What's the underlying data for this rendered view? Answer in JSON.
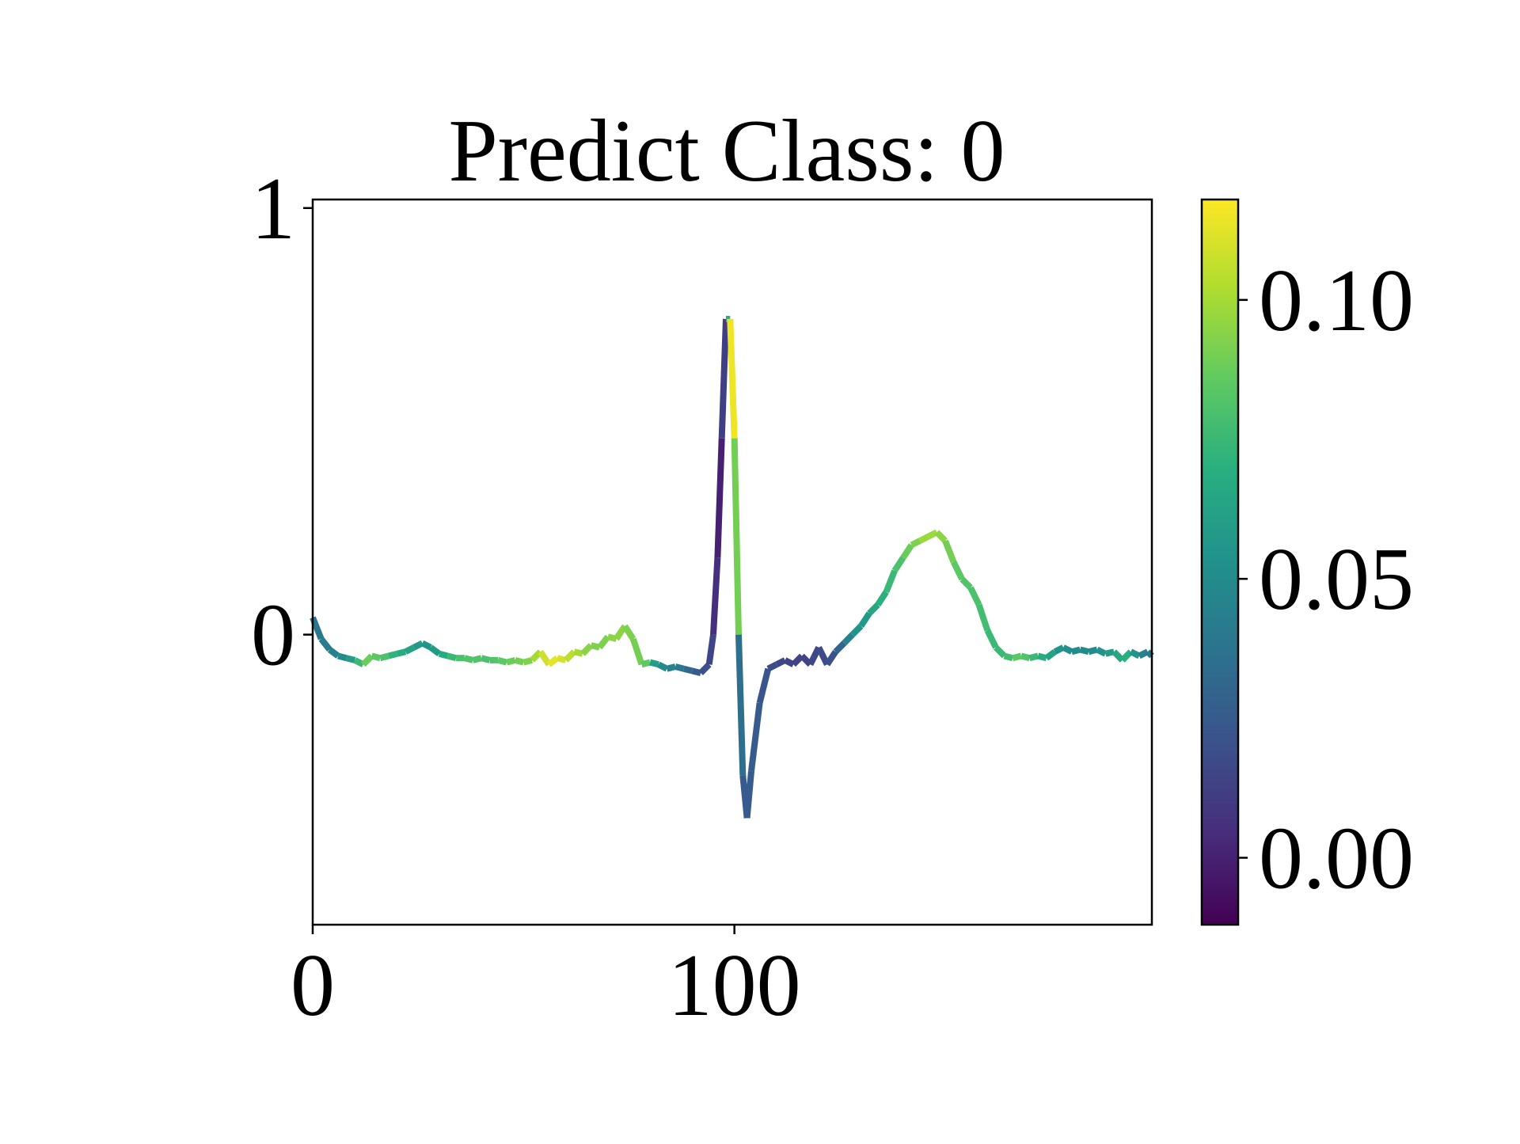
{
  "chart_data": {
    "type": "line",
    "title": "Predict Class: 0",
    "xlabel": "",
    "ylabel": "",
    "xlim": [
      0,
      199
    ],
    "ylim": [
      -0.68,
      1.02
    ],
    "x_ticks": [
      {
        "value": 0,
        "label": "0"
      },
      {
        "value": 100,
        "label": "100"
      }
    ],
    "y_ticks": [
      {
        "value": 0,
        "label": "0"
      },
      {
        "value": 1,
        "label": "1"
      }
    ],
    "grid": false,
    "legend": "none",
    "colormap": "viridis",
    "colorbar": {
      "range": [
        -0.012,
        0.118
      ],
      "ticks": [
        {
          "value": 0.0,
          "label": "0.00"
        },
        {
          "value": 0.05,
          "label": "0.05"
        },
        {
          "value": 0.1,
          "label": "0.10"
        }
      ]
    },
    "series": [
      {
        "points": [
          [
            0,
            0.04,
            0.04
          ],
          [
            2,
            -0.01,
            0.042
          ],
          [
            4,
            -0.035,
            0.045
          ],
          [
            6,
            -0.05,
            0.05
          ],
          [
            8,
            -0.055,
            0.06
          ],
          [
            10,
            -0.06,
            0.075
          ],
          [
            12,
            -0.07,
            0.088
          ],
          [
            14,
            -0.05,
            0.085
          ],
          [
            16,
            -0.055,
            0.08
          ],
          [
            18,
            -0.05,
            0.072
          ],
          [
            20,
            -0.045,
            0.068
          ],
          [
            22,
            -0.04,
            0.063
          ],
          [
            24,
            -0.03,
            0.058
          ],
          [
            26,
            -0.02,
            0.055
          ],
          [
            28,
            -0.03,
            0.058
          ],
          [
            30,
            -0.045,
            0.068
          ],
          [
            32,
            -0.05,
            0.075
          ],
          [
            34,
            -0.055,
            0.08
          ],
          [
            36,
            -0.055,
            0.082
          ],
          [
            38,
            -0.06,
            0.082
          ],
          [
            40,
            -0.055,
            0.08
          ],
          [
            42,
            -0.06,
            0.082
          ],
          [
            44,
            -0.06,
            0.085
          ],
          [
            46,
            -0.065,
            0.088
          ],
          [
            48,
            -0.06,
            0.09
          ],
          [
            50,
            -0.065,
            0.092
          ],
          [
            52,
            -0.06,
            0.1
          ],
          [
            54,
            -0.04,
            0.108
          ],
          [
            56,
            -0.07,
            0.113
          ],
          [
            58,
            -0.055,
            0.11
          ],
          [
            60,
            -0.06,
            0.105
          ],
          [
            62,
            -0.04,
            0.1
          ],
          [
            64,
            -0.045,
            0.095
          ],
          [
            66,
            -0.025,
            0.092
          ],
          [
            68,
            -0.03,
            0.092
          ],
          [
            70,
            -0.005,
            0.095
          ],
          [
            72,
            -0.01,
            0.095
          ],
          [
            74,
            0.02,
            0.092
          ],
          [
            76,
            -0.01,
            0.09
          ],
          [
            78,
            -0.07,
            0.085
          ],
          [
            80,
            -0.065,
            0.06
          ],
          [
            82,
            -0.07,
            0.05
          ],
          [
            84,
            -0.08,
            0.045
          ],
          [
            86,
            -0.075,
            0.04
          ],
          [
            88,
            -0.08,
            0.032
          ],
          [
            90,
            -0.085,
            0.025
          ],
          [
            92,
            -0.09,
            0.02
          ],
          [
            94,
            -0.07,
            0.015
          ],
          [
            95,
            0.0,
            0.005
          ],
          [
            96,
            0.18,
            0.0
          ],
          [
            97,
            0.46,
            0.012
          ],
          [
            98,
            0.74,
            0.07
          ],
          [
            99,
            0.74,
            0.115
          ],
          [
            100,
            0.46,
            0.09
          ],
          [
            101,
            0.0,
            0.035
          ],
          [
            102,
            -0.33,
            0.025
          ],
          [
            103,
            -0.43,
            0.025
          ],
          [
            104,
            -0.32,
            0.025
          ],
          [
            106,
            -0.16,
            0.022
          ],
          [
            108,
            -0.08,
            0.018
          ],
          [
            110,
            -0.07,
            0.016
          ],
          [
            112,
            -0.06,
            0.014
          ],
          [
            114,
            -0.07,
            0.014
          ],
          [
            116,
            -0.05,
            0.014
          ],
          [
            118,
            -0.07,
            0.016
          ],
          [
            120,
            -0.03,
            0.018
          ],
          [
            122,
            -0.07,
            0.02
          ],
          [
            124,
            -0.04,
            0.03
          ],
          [
            126,
            -0.02,
            0.045
          ],
          [
            128,
            0.0,
            0.055
          ],
          [
            130,
            0.02,
            0.058
          ],
          [
            132,
            0.05,
            0.065
          ],
          [
            134,
            0.07,
            0.07
          ],
          [
            136,
            0.1,
            0.075
          ],
          [
            138,
            0.15,
            0.08
          ],
          [
            140,
            0.18,
            0.088
          ],
          [
            142,
            0.21,
            0.092
          ],
          [
            144,
            0.22,
            0.098
          ],
          [
            146,
            0.23,
            0.098
          ],
          [
            148,
            0.24,
            0.095
          ],
          [
            150,
            0.22,
            0.09
          ],
          [
            152,
            0.17,
            0.085
          ],
          [
            154,
            0.13,
            0.082
          ],
          [
            156,
            0.11,
            0.08
          ],
          [
            158,
            0.07,
            0.078
          ],
          [
            160,
            0.01,
            0.075
          ],
          [
            162,
            -0.03,
            0.075
          ],
          [
            164,
            -0.05,
            0.078
          ],
          [
            166,
            -0.055,
            0.085
          ],
          [
            168,
            -0.05,
            0.082
          ],
          [
            170,
            -0.055,
            0.075
          ],
          [
            172,
            -0.05,
            0.068
          ],
          [
            174,
            -0.055,
            0.062
          ],
          [
            176,
            -0.04,
            0.055
          ],
          [
            178,
            -0.03,
            0.052
          ],
          [
            180,
            -0.04,
            0.05
          ],
          [
            182,
            -0.035,
            0.05
          ],
          [
            184,
            -0.04,
            0.05
          ],
          [
            186,
            -0.035,
            0.055
          ],
          [
            188,
            -0.045,
            0.06
          ],
          [
            190,
            -0.04,
            0.065
          ],
          [
            192,
            -0.06,
            0.07
          ],
          [
            194,
            -0.04,
            0.055
          ],
          [
            196,
            -0.05,
            0.045
          ],
          [
            198,
            -0.04,
            0.04
          ],
          [
            199,
            -0.05,
            0.038
          ]
        ]
      }
    ]
  }
}
